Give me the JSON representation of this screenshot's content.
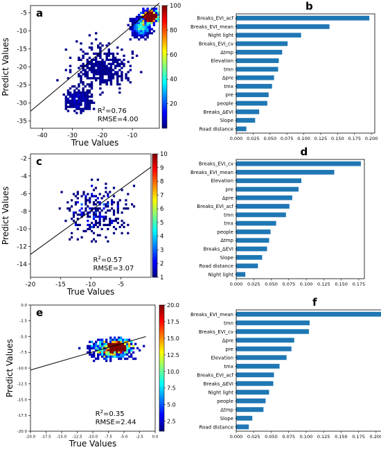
{
  "chart_data": [
    {
      "panel_label": "a",
      "type": "heatmap",
      "xlabel": "True Values",
      "ylabel": "Predict Values",
      "xlim": [
        -44,
        -1
      ],
      "ylim": [
        -37,
        -3
      ],
      "xticks": [
        -40,
        -30,
        -20,
        -10
      ],
      "yticks": [
        -35,
        -30,
        -25,
        -20,
        -15,
        -10,
        -5
      ],
      "colorbar": {
        "min": 0,
        "max": 100,
        "ticks": [
          20,
          40,
          60,
          80,
          100
        ]
      },
      "fit_line": {
        "x": [
          -44,
          -1
        ],
        "y": [
          -32.3,
          -2.3
        ]
      },
      "stats": {
        "r2_label": "R",
        "r2_sup": "2",
        "r2_value": "=0.76",
        "rmse": "RMSE=4.00"
      },
      "clusters": [
        {
          "cx": -28,
          "cy": -29,
          "sx": 4.5,
          "sy": 3.0,
          "n": 320,
          "w": 1
        },
        {
          "cx": -20,
          "cy": -20,
          "sx": 9.0,
          "sy": 6.0,
          "n": 380,
          "w": 1
        },
        {
          "cx": -7,
          "cy": -9,
          "sx": 3.0,
          "sy": 2.5,
          "n": 520,
          "w": 3
        },
        {
          "cx": -4,
          "cy": -6,
          "sx": 2.5,
          "sy": 1.8,
          "n": 450,
          "w": 12
        }
      ]
    },
    {
      "panel_label": "b",
      "type": "bar",
      "orientation": "horizontal",
      "categories": [
        "Breaks_EVI_acf",
        "Breaks_EVI_mean",
        "Night light",
        "Breaks_EVI_cv",
        "Δtmp",
        "Elevation",
        "tmn",
        "Δpre",
        "tmx",
        "pre",
        "people",
        "Breaks_ΔEVI",
        "Slope",
        "Road distance"
      ],
      "values": [
        0.197,
        0.138,
        0.096,
        0.076,
        0.068,
        0.063,
        0.062,
        0.056,
        0.053,
        0.048,
        0.046,
        0.034,
        0.028,
        0.015
      ],
      "xlim": [
        0,
        0.205
      ],
      "xticks": [
        "0.000",
        "0.025",
        "0.050",
        "0.075",
        "0.100",
        "0.125",
        "0.150",
        "0.175",
        "0.200"
      ],
      "xtick_values": [
        0,
        0.025,
        0.05,
        0.075,
        0.1,
        0.125,
        0.15,
        0.175,
        0.2
      ],
      "color": "#1f77b4"
    },
    {
      "panel_label": "c",
      "type": "heatmap",
      "xlabel": "True Values",
      "ylabel": "Predict Values",
      "xlim": [
        -20,
        0
      ],
      "ylim": [
        -15.5,
        -1.5
      ],
      "xticks": [
        -20,
        -15,
        -10,
        -5
      ],
      "yticks": [
        -14,
        -12,
        -10,
        -8,
        -6,
        -4,
        -2
      ],
      "colorbar": {
        "min": 1,
        "max": 10,
        "ticks": [
          1,
          2,
          3,
          4,
          5,
          6,
          7,
          8,
          9,
          10
        ]
      },
      "fit_line": {
        "x": [
          -20,
          0
        ],
        "y": [
          -12.9,
          -3.0
        ]
      },
      "stats": {
        "r2_label": "R",
        "r2_sup": "2",
        "r2_value": "=0.57",
        "rmse": "RMSE=3.07"
      },
      "clusters": [
        {
          "cx": -9,
          "cy": -8,
          "sx": 5.0,
          "sy": 3.0,
          "n": 260,
          "w": 1
        }
      ]
    },
    {
      "panel_label": "d",
      "type": "bar",
      "orientation": "horizontal",
      "categories": [
        "Breaks_EVI_cv",
        "Breaks_EVI_mean",
        "Elevation",
        "pre",
        "Δpre",
        "Breaks_EVI_acf",
        "tmn",
        "tmx",
        "people",
        "Δtmp",
        "Breaks_ΔEVI",
        "Slope",
        "Road distance",
        "Night light"
      ],
      "values": [
        0.178,
        0.14,
        0.093,
        0.089,
        0.08,
        0.076,
        0.071,
        0.057,
        0.049,
        0.047,
        0.044,
        0.037,
        0.031,
        0.013
      ],
      "xlim": [
        0,
        0.183
      ],
      "xticks": [
        "0.000",
        "0.025",
        "0.050",
        "0.075",
        "0.100",
        "0.125",
        "0.150",
        "0.175"
      ],
      "xtick_values": [
        0,
        0.025,
        0.05,
        0.075,
        0.1,
        0.125,
        0.15,
        0.175
      ],
      "color": "#1f77b4"
    },
    {
      "panel_label": "e",
      "type": "heatmap",
      "xlabel": "True Values",
      "ylabel": "Predict Values",
      "xlim": [
        -20,
        0
      ],
      "ylim": [
        -20,
        0
      ],
      "xticks": [
        "-20.0",
        "-17.5",
        "-15.0",
        "-12.5",
        "-10.0",
        "-7.5",
        "-5.0",
        "-2.5",
        "0.0"
      ],
      "xtick_values": [
        -20,
        -17.5,
        -15,
        -12.5,
        -10,
        -7.5,
        -5,
        -2.5,
        0
      ],
      "yticks": [
        "-20.0",
        "-17.5",
        "-15.0",
        "-12.5",
        "-10.0",
        "-7.5",
        "-5.0",
        "-2.5",
        "0.0"
      ],
      "ytick_values": [
        -20,
        -17.5,
        -15,
        -12.5,
        -10,
        -7.5,
        -5,
        -2.5,
        0
      ],
      "colorbar": {
        "min": 1,
        "max": 20,
        "ticks": [
          "2.5",
          "5.0",
          "7.5",
          "10.0",
          "12.5",
          "15.0",
          "17.5",
          "20.0"
        ],
        "tick_values": [
          2.5,
          5,
          7.5,
          10,
          12.5,
          15,
          17.5,
          20
        ]
      },
      "fit_line": {
        "x": [
          -20,
          -1.5
        ],
        "y": [
          -10.3,
          -5.0
        ]
      },
      "stats": {
        "r2_label": "R",
        "r2_sup": "2",
        "r2_value": "=0.35",
        "rmse": "RMSE=2.44"
      },
      "clusters": [
        {
          "cx": -7,
          "cy": -7,
          "sx": 3.2,
          "sy": 1.4,
          "n": 650,
          "w": 2
        },
        {
          "cx": -6,
          "cy": -6.5,
          "sx": 1.5,
          "sy": 0.8,
          "n": 250,
          "w": 6
        }
      ]
    },
    {
      "panel_label": "f",
      "type": "bar",
      "orientation": "horizontal",
      "categories": [
        "Breaks_EVI_mean",
        "tmn",
        "Breaks_EVI_cv",
        "Δpre",
        "pre",
        "Elevation",
        "tmx",
        "Breaks_EVI_acf",
        "Breaks_ΔEVI",
        "Night light",
        "people",
        "Δtmp",
        "Slope",
        "Road distance"
      ],
      "values": [
        0.212,
        0.105,
        0.104,
        0.083,
        0.079,
        0.072,
        0.062,
        0.054,
        0.053,
        0.047,
        0.042,
        0.039,
        0.023,
        0.018
      ],
      "xlim": [
        0,
        0.218
      ],
      "xticks": [
        "0.000",
        "0.025",
        "0.050",
        "0.075",
        "0.100",
        "0.125",
        "0.150",
        "0.175",
        "0.200"
      ],
      "xtick_values": [
        0,
        0.025,
        0.05,
        0.075,
        0.1,
        0.125,
        0.15,
        0.175,
        0.2
      ],
      "color": "#1f77b4"
    }
  ]
}
